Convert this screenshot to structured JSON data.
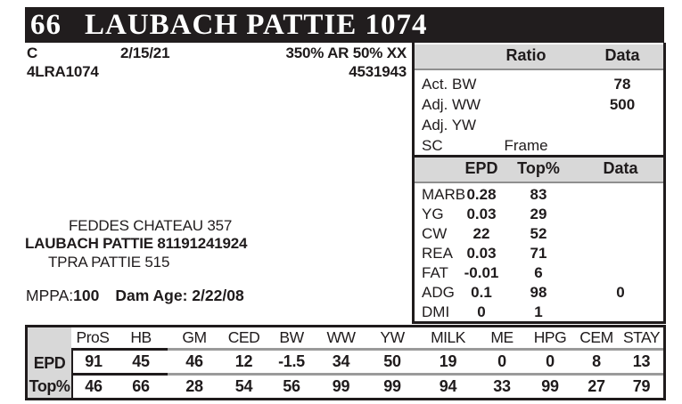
{
  "header": {
    "lot": "66",
    "name": "LAUBACH PATTIE 1074"
  },
  "info": {
    "sex": "C",
    "birth_date": "2/15/21",
    "breed_comp": "350% AR 50% XX",
    "tattoo": "4LRA1074",
    "reg_number": "4531943"
  },
  "perf_panel": {
    "col_ratio": "Ratio",
    "col_data": "Data",
    "rows": [
      {
        "label": "Act. BW",
        "ratio": "",
        "data": "78"
      },
      {
        "label": "Adj. WW",
        "ratio": "",
        "data": "500"
      },
      {
        "label": "Adj. YW",
        "ratio": "",
        "data": ""
      },
      {
        "label": "SC",
        "ratio": "Frame",
        "data": ""
      }
    ]
  },
  "epd_panel": {
    "col_epd": "EPD",
    "col_top": "Top%",
    "col_data": "Data",
    "rows": [
      {
        "label": "MARB",
        "epd": "0.28",
        "top": "83",
        "data": ""
      },
      {
        "label": "YG",
        "epd": "0.03",
        "top": "29",
        "data": ""
      },
      {
        "label": "CW",
        "epd": "22",
        "top": "52",
        "data": ""
      },
      {
        "label": "REA",
        "epd": "0.03",
        "top": "71",
        "data": ""
      },
      {
        "label": "FAT",
        "epd": "-0.01",
        "top": "6",
        "data": ""
      },
      {
        "label": "ADG",
        "epd": "0.1",
        "top": "98",
        "data": "0"
      },
      {
        "label": "DMI",
        "epd": "0",
        "top": "1",
        "data": ""
      }
    ]
  },
  "pedigree": {
    "sire": "FEDDES CHATEAU 357",
    "dam": "LAUBACH PATTIE 81191241924",
    "maternal_granddam": "TPRA PATTIE 515"
  },
  "dam_info": {
    "mppa_label": "MPPA:",
    "mppa_value": "100",
    "dam_age_label": "Dam Age:",
    "dam_age_value": "2/22/08"
  },
  "epd_table": {
    "row_labels": [
      "EPD",
      "Top%"
    ],
    "columns": [
      "ProS",
      "HB",
      "GM",
      "CED",
      "BW",
      "WW",
      "YW",
      "MILK",
      "ME",
      "HPG",
      "CEM",
      "STAY"
    ],
    "epd": [
      "91",
      "45",
      "46",
      "12",
      "-1.5",
      "34",
      "50",
      "19",
      "0",
      "0",
      "8",
      "13"
    ],
    "top": [
      "46",
      "66",
      "28",
      "54",
      "56",
      "99",
      "99",
      "94",
      "33",
      "99",
      "27",
      "79"
    ]
  },
  "colors": {
    "bar_black": "#211d1e",
    "header_gray": "#d8d8d8",
    "divider_gray": "#9a9a9a"
  }
}
